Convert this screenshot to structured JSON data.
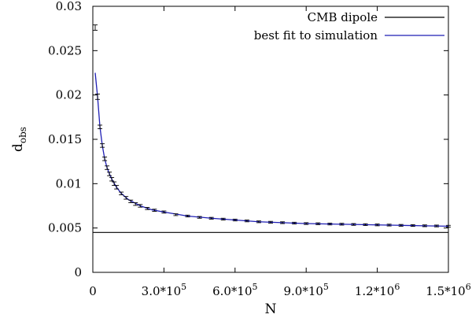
{
  "chart_data": {
    "type": "line",
    "xlabel": "N",
    "ylabel_main": "d",
    "ylabel_sub": "obs",
    "xlim": [
      0,
      1500000
    ],
    "ylim": [
      0,
      0.03
    ],
    "grid": false,
    "legend_placement": "top-right",
    "x_ticks": [
      {
        "value": 0,
        "mant": "0",
        "exp": ""
      },
      {
        "value": 300000,
        "mant": "3.0*10",
        "exp": "5"
      },
      {
        "value": 600000,
        "mant": "6.0*10",
        "exp": "5"
      },
      {
        "value": 900000,
        "mant": "9.0*10",
        "exp": "5"
      },
      {
        "value": 1200000,
        "mant": "1.2*10",
        "exp": "6"
      },
      {
        "value": 1500000,
        "mant": "1.5*10",
        "exp": "6"
      }
    ],
    "y_ticks": [
      {
        "value": 0,
        "label": "0"
      },
      {
        "value": 0.005,
        "label": "0.005"
      },
      {
        "value": 0.01,
        "label": "0.01"
      },
      {
        "value": 0.015,
        "label": "0.015"
      },
      {
        "value": 0.02,
        "label": "0.02"
      },
      {
        "value": 0.025,
        "label": "0.025"
      },
      {
        "value": 0.03,
        "label": "0.03"
      }
    ],
    "series": [
      {
        "name": "CMB dipole",
        "kind": "hline",
        "color": "#000000",
        "y": 0.0045
      },
      {
        "name": "best fit to simulation",
        "kind": "curve",
        "color": "#1f1fb4",
        "x": [
          10000,
          20000,
          30000,
          40000,
          50000,
          60000,
          70000,
          80000,
          100000,
          120000,
          150000,
          200000,
          250000,
          300000,
          400000,
          500000,
          600000,
          700000,
          800000,
          900000,
          1000000,
          1100000,
          1200000,
          1300000,
          1400000,
          1500000
        ],
        "y": [
          0.0225,
          0.0198,
          0.0164,
          0.0143,
          0.0128,
          0.0118,
          0.0111,
          0.0105,
          0.0096,
          0.0089,
          0.0082,
          0.0075,
          0.00705,
          0.0068,
          0.00635,
          0.0061,
          0.0059,
          0.0057,
          0.0056,
          0.0055,
          0.00545,
          0.0054,
          0.00535,
          0.0053,
          0.00525,
          0.0052
        ]
      },
      {
        "kind": "errorbars",
        "color": "#000000",
        "x": [
          10000,
          20000,
          30000,
          40000,
          50000,
          60000,
          70000,
          80000,
          90000,
          100000,
          120000,
          140000,
          160000,
          180000,
          200000,
          230000,
          260000,
          300000,
          350000,
          400000,
          450000,
          500000,
          550000,
          600000,
          650000,
          700000,
          750000,
          800000,
          850000,
          900000,
          950000,
          1000000,
          1050000,
          1100000,
          1150000,
          1200000,
          1250000,
          1300000,
          1350000,
          1400000,
          1450000,
          1500000
        ],
        "y": [
          0.0276,
          0.0198,
          0.0164,
          0.0143,
          0.0128,
          0.0118,
          0.0111,
          0.0105,
          0.01,
          0.0096,
          0.0089,
          0.0084,
          0.008,
          0.0077,
          0.0075,
          0.0072,
          0.007,
          0.0068,
          0.0065,
          0.00635,
          0.0062,
          0.0061,
          0.006,
          0.0059,
          0.0058,
          0.0057,
          0.00565,
          0.0056,
          0.00555,
          0.0055,
          0.00548,
          0.00545,
          0.00543,
          0.0054,
          0.00538,
          0.00535,
          0.00533,
          0.0053,
          0.00528,
          0.00525,
          0.00523,
          0.0052
        ],
        "err": [
          0.0003,
          0.0003,
          0.0002,
          0.0002,
          0.0002,
          0.0002,
          0.0002,
          0.0002,
          0.0002,
          0.0002,
          0.00015,
          0.00015,
          0.00015,
          0.00015,
          0.00015,
          0.00012,
          0.00012,
          0.00012,
          0.0001,
          0.0001,
          0.0001,
          0.0001,
          0.0001,
          0.0001,
          0.0001,
          0.0001,
          0.0001,
          0.0001,
          0.0001,
          0.0001,
          0.0001,
          0.0001,
          0.0001,
          0.0001,
          0.0001,
          0.0001,
          0.0001,
          0.0001,
          0.0001,
          0.0001,
          0.0001,
          0.0001
        ]
      }
    ]
  }
}
